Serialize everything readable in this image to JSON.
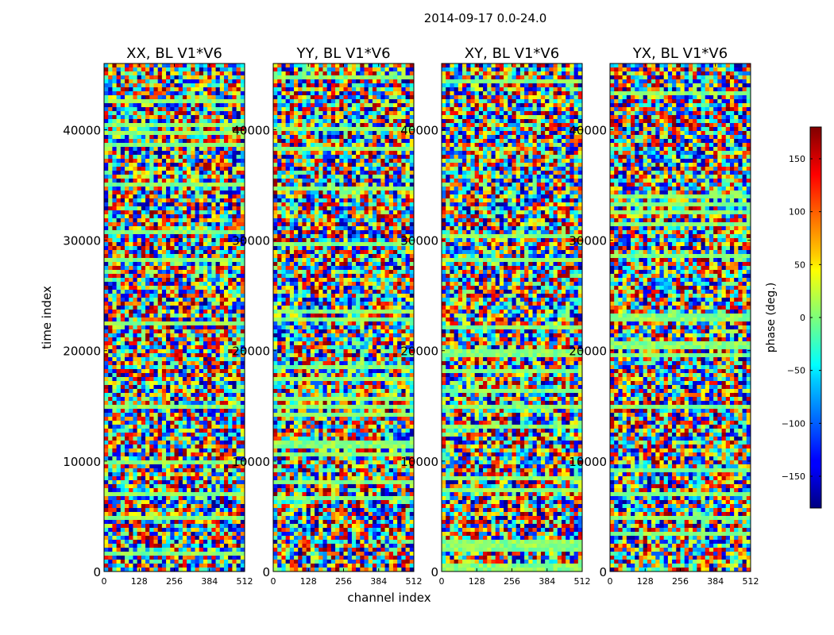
{
  "suptitle": "2014-09-17 0.0-24.0",
  "chart_data": {
    "type": "heatmap",
    "title": "2014-09-17 0.0-24.0",
    "xlabel": "channel index",
    "ylabel": "time index",
    "xlim": [
      0,
      512
    ],
    "ylim": [
      0,
      46000
    ],
    "x_ticks": [
      0,
      128,
      256,
      384,
      512
    ],
    "x_tick_labels": [
      "0",
      "128",
      "256",
      "384",
      "512"
    ],
    "y_ticks": [
      0,
      10000,
      20000,
      30000,
      40000
    ],
    "y_tick_labels": [
      "0",
      "10000",
      "20000",
      "30000",
      "40000"
    ],
    "panels": [
      {
        "title": "XX, BL V1*V6",
        "polarization": "XX",
        "baseline": "V1*V6"
      },
      {
        "title": "YY, BL V1*V6",
        "polarization": "YY",
        "baseline": "V1*V6"
      },
      {
        "title": "XY, BL V1*V6",
        "polarization": "XY",
        "baseline": "V1*V6"
      },
      {
        "title": "YX, BL V1*V6",
        "polarization": "YX",
        "baseline": "V1*V6"
      }
    ],
    "colorbar": {
      "label": "phase (deg.)",
      "range": [
        -180,
        180
      ],
      "ticks": [
        -150,
        -100,
        -50,
        0,
        50,
        100,
        150
      ],
      "tick_labels": [
        "−150",
        "−100",
        "−50",
        "0",
        "50",
        "100",
        "150"
      ],
      "colormap": "jet"
    },
    "grid": false,
    "legend": "none"
  }
}
